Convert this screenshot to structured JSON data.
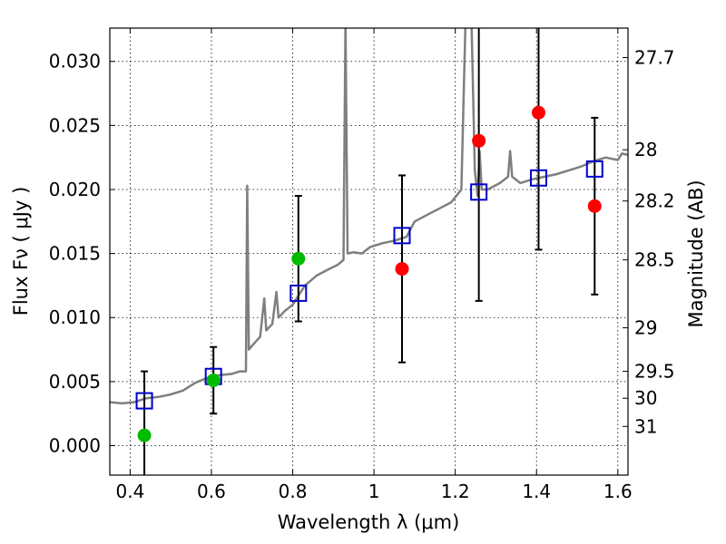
{
  "chart_data": {
    "type": "scatter",
    "xlabel": "Wavelength  λ (μm)",
    "ylabel": "Flux  Fν  ( μJy )",
    "y2label": "Magnitude (AB)",
    "xlim": [
      0.35,
      1.625
    ],
    "ylim": [
      -0.0023,
      0.0326
    ],
    "grid": true,
    "x_ticks": [
      0.4,
      0.6,
      0.8,
      1.0,
      1.2,
      1.4,
      1.6
    ],
    "x_tick_labels": [
      "0.4",
      "0.6",
      "0.8",
      "1",
      "1.2",
      "1.4",
      "1.6"
    ],
    "y_ticks": [
      0.0,
      0.005,
      0.01,
      0.015,
      0.02,
      0.025,
      0.03
    ],
    "y_tick_labels": [
      "0.000",
      "0.005",
      "0.010",
      "0.015",
      "0.020",
      "0.025",
      "0.030"
    ],
    "mag_ticks": [
      {
        "label": "27.7",
        "flux": 0.0303
      },
      {
        "label": "28",
        "flux": 0.0231
      },
      {
        "label": "28.2",
        "flux": 0.0191
      },
      {
        "label": "28.5",
        "flux": 0.0145
      },
      {
        "label": "29",
        "flux": 0.0092
      },
      {
        "label": "29.5",
        "flux": 0.0058
      },
      {
        "label": "30",
        "flux": 0.0037
      },
      {
        "label": "31",
        "flux": 0.0015
      }
    ],
    "colors": {
      "spectrum": "#7f7f7f",
      "model": "#0000cc",
      "green": "#00bb00",
      "red": "#ff0000",
      "errorbar": "#000000"
    },
    "spectrum": [
      [
        0.35,
        0.0034
      ],
      [
        0.38,
        0.0033
      ],
      [
        0.41,
        0.0034
      ],
      [
        0.44,
        0.0037
      ],
      [
        0.47,
        0.0038
      ],
      [
        0.5,
        0.004
      ],
      [
        0.53,
        0.0043
      ],
      [
        0.56,
        0.0049
      ],
      [
        0.59,
        0.0053
      ],
      [
        0.62,
        0.0055
      ],
      [
        0.65,
        0.0056
      ],
      [
        0.67,
        0.0058
      ],
      [
        0.685,
        0.0058
      ],
      [
        0.688,
        0.0203
      ],
      [
        0.692,
        0.0075
      ],
      [
        0.7,
        0.0078
      ],
      [
        0.72,
        0.0085
      ],
      [
        0.73,
        0.0115
      ],
      [
        0.735,
        0.009
      ],
      [
        0.75,
        0.0095
      ],
      [
        0.76,
        0.012
      ],
      [
        0.765,
        0.01
      ],
      [
        0.78,
        0.0105
      ],
      [
        0.8,
        0.011
      ],
      [
        0.83,
        0.0125
      ],
      [
        0.86,
        0.0133
      ],
      [
        0.89,
        0.0138
      ],
      [
        0.91,
        0.0141
      ],
      [
        0.925,
        0.0145
      ],
      [
        0.93,
        0.033
      ],
      [
        0.935,
        0.015
      ],
      [
        0.95,
        0.0151
      ],
      [
        0.97,
        0.015
      ],
      [
        0.99,
        0.0155
      ],
      [
        1.02,
        0.0158
      ],
      [
        1.05,
        0.016
      ],
      [
        1.08,
        0.0163
      ],
      [
        1.1,
        0.0175
      ],
      [
        1.13,
        0.018
      ],
      [
        1.16,
        0.0185
      ],
      [
        1.19,
        0.019
      ],
      [
        1.215,
        0.02
      ],
      [
        1.225,
        0.033
      ],
      [
        1.24,
        0.033
      ],
      [
        1.248,
        0.0215
      ],
      [
        1.255,
        0.0195
      ],
      [
        1.26,
        0.023
      ],
      [
        1.265,
        0.02
      ],
      [
        1.28,
        0.02
      ],
      [
        1.31,
        0.0205
      ],
      [
        1.33,
        0.021
      ],
      [
        1.335,
        0.023
      ],
      [
        1.34,
        0.021
      ],
      [
        1.36,
        0.0205
      ],
      [
        1.39,
        0.0208
      ],
      [
        1.42,
        0.021
      ],
      [
        1.45,
        0.0212
      ],
      [
        1.48,
        0.0215
      ],
      [
        1.51,
        0.0218
      ],
      [
        1.54,
        0.0222
      ],
      [
        1.57,
        0.0225
      ],
      [
        1.6,
        0.0223
      ],
      [
        1.61,
        0.0228
      ],
      [
        1.625,
        0.0227
      ]
    ],
    "model_points": [
      {
        "x": 0.435,
        "y": 0.0035
      },
      {
        "x": 0.605,
        "y": 0.0054
      },
      {
        "x": 0.814,
        "y": 0.0119
      },
      {
        "x": 1.069,
        "y": 0.0164
      },
      {
        "x": 1.258,
        "y": 0.0198
      },
      {
        "x": 1.405,
        "y": 0.0209
      },
      {
        "x": 1.543,
        "y": 0.0216
      }
    ],
    "observed_points": [
      {
        "x": 0.435,
        "y": 0.0008,
        "err": 0.005,
        "color": "green"
      },
      {
        "x": 0.605,
        "y": 0.0051,
        "err": 0.0026,
        "color": "green"
      },
      {
        "x": 0.814,
        "y": 0.0146,
        "err": 0.0049,
        "color": "green"
      },
      {
        "x": 1.069,
        "y": 0.0138,
        "err": 0.0073,
        "color": "red"
      },
      {
        "x": 1.258,
        "y": 0.0238,
        "err": 0.0125,
        "color": "red"
      },
      {
        "x": 1.405,
        "y": 0.026,
        "err": 0.0107,
        "color": "red"
      },
      {
        "x": 1.543,
        "y": 0.0187,
        "err": 0.0069,
        "color": "red"
      }
    ]
  }
}
